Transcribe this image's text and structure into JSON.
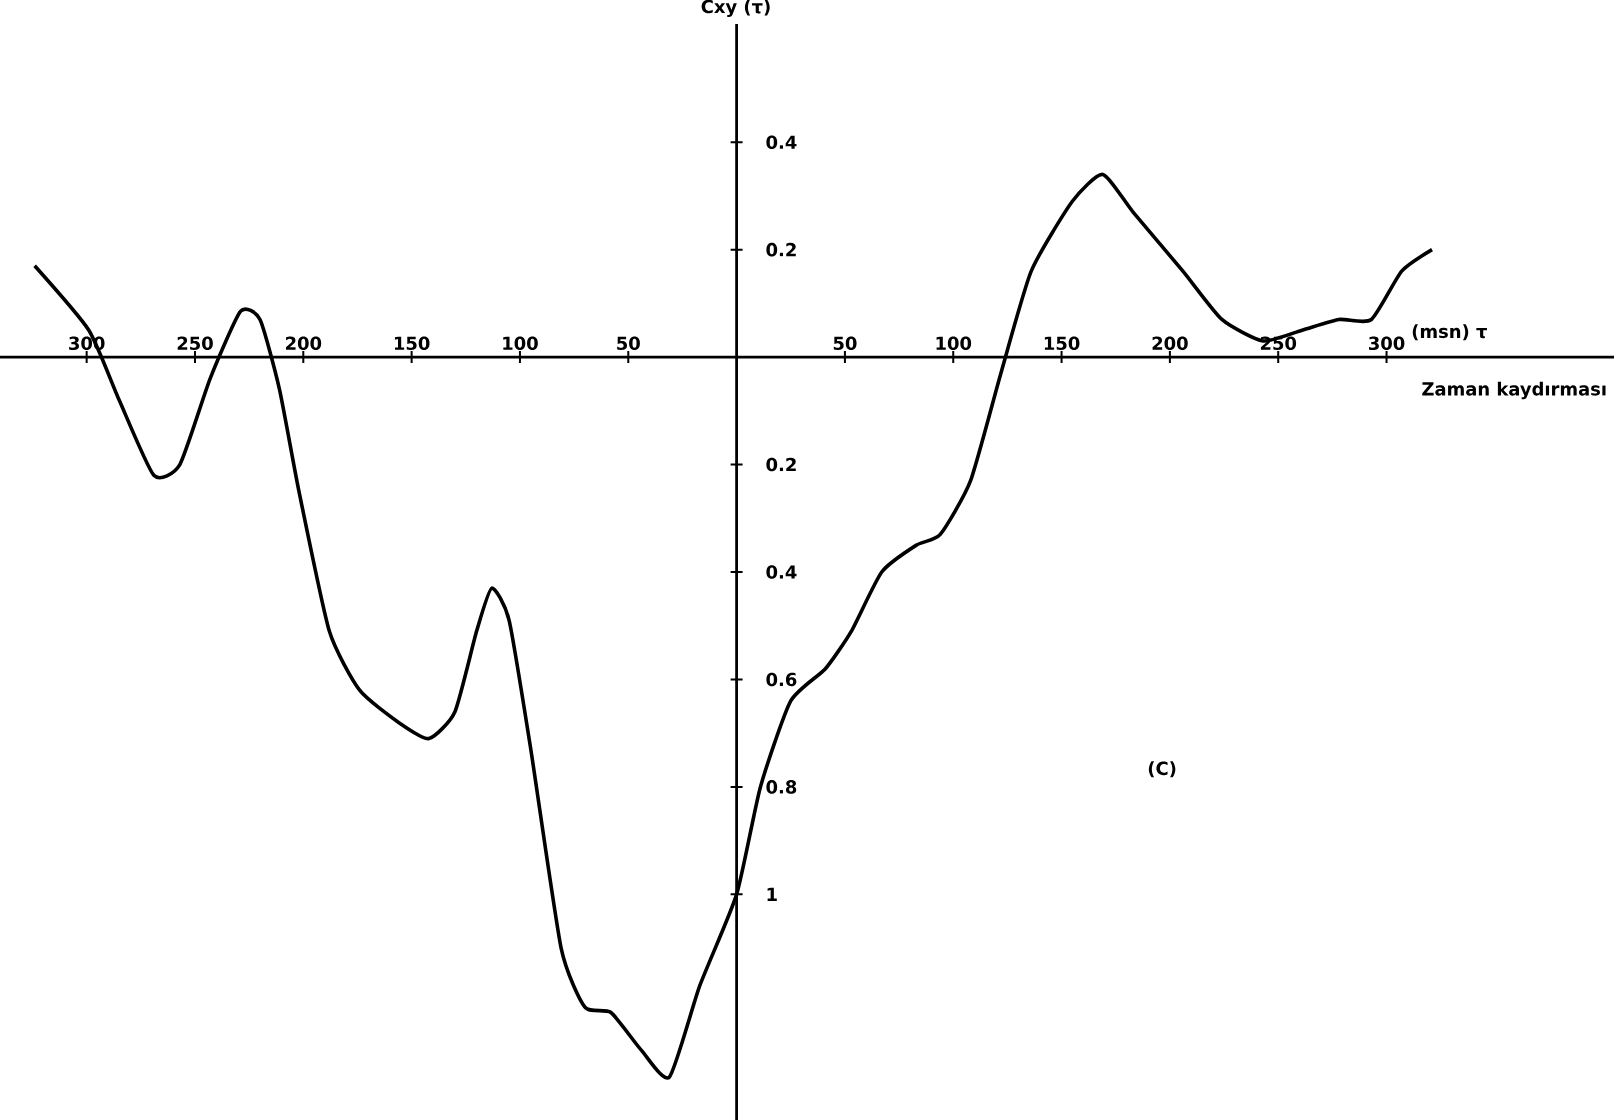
{
  "chart_data": {
    "type": "line",
    "ylabel": "Cxy (τ)",
    "xlabel": "(msn) τ",
    "annotations": [
      "Zaman kaydırması",
      "(C)"
    ],
    "xlim": [
      -340,
      405
    ],
    "ylim": [
      -1.42,
      0.62
    ],
    "xticks": [
      {
        "value": -300,
        "label": "300"
      },
      {
        "value": -250,
        "label": "250"
      },
      {
        "value": -200,
        "label": "200"
      },
      {
        "value": -150,
        "label": "150"
      },
      {
        "value": -100,
        "label": "100"
      },
      {
        "value": -50,
        "label": "50"
      },
      50,
      100,
      150,
      200,
      250,
      300
    ],
    "yticks": [
      {
        "value": -1,
        "label": "1"
      },
      {
        "value": -0.8,
        "label": "0.8"
      },
      {
        "value": -0.6,
        "label": "0.6"
      },
      {
        "value": -0.4,
        "label": "0.4"
      },
      {
        "value": -0.2,
        "label": "0.2"
      },
      0.2,
      0.4
    ],
    "series": [
      {
        "color": "#000000",
        "x": [
          -324,
          -299,
          -285,
          -269,
          -257,
          -243,
          -229,
          -220,
          -211,
          -202,
          -188,
          -174,
          -156,
          -142,
          -130,
          -120,
          -113,
          -105,
          -95,
          -81,
          -70,
          -58,
          -44,
          -31,
          -17,
          0,
          11,
          25,
          41,
          53,
          67,
          83,
          94,
          108,
          122,
          136,
          155,
          169,
          183,
          206,
          224,
          243,
          261,
          278,
          293,
          307,
          321
        ],
        "values": [
          0.17,
          0.05,
          -0.08,
          -0.22,
          -0.2,
          -0.04,
          0.085,
          0.07,
          -0.06,
          -0.25,
          -0.51,
          -0.62,
          -0.68,
          -0.71,
          -0.66,
          -0.51,
          -0.43,
          -0.49,
          -0.73,
          -1.1,
          -1.21,
          -1.22,
          -1.29,
          -1.34,
          -1.17,
          -1.0,
          -0.8,
          -0.64,
          -0.58,
          -0.51,
          -0.4,
          -0.35,
          -0.33,
          -0.23,
          -0.03,
          0.16,
          0.29,
          0.34,
          0.27,
          0.16,
          0.07,
          0.03,
          0.05,
          0.07,
          0.07,
          0.16,
          0.2
        ]
      }
    ]
  }
}
